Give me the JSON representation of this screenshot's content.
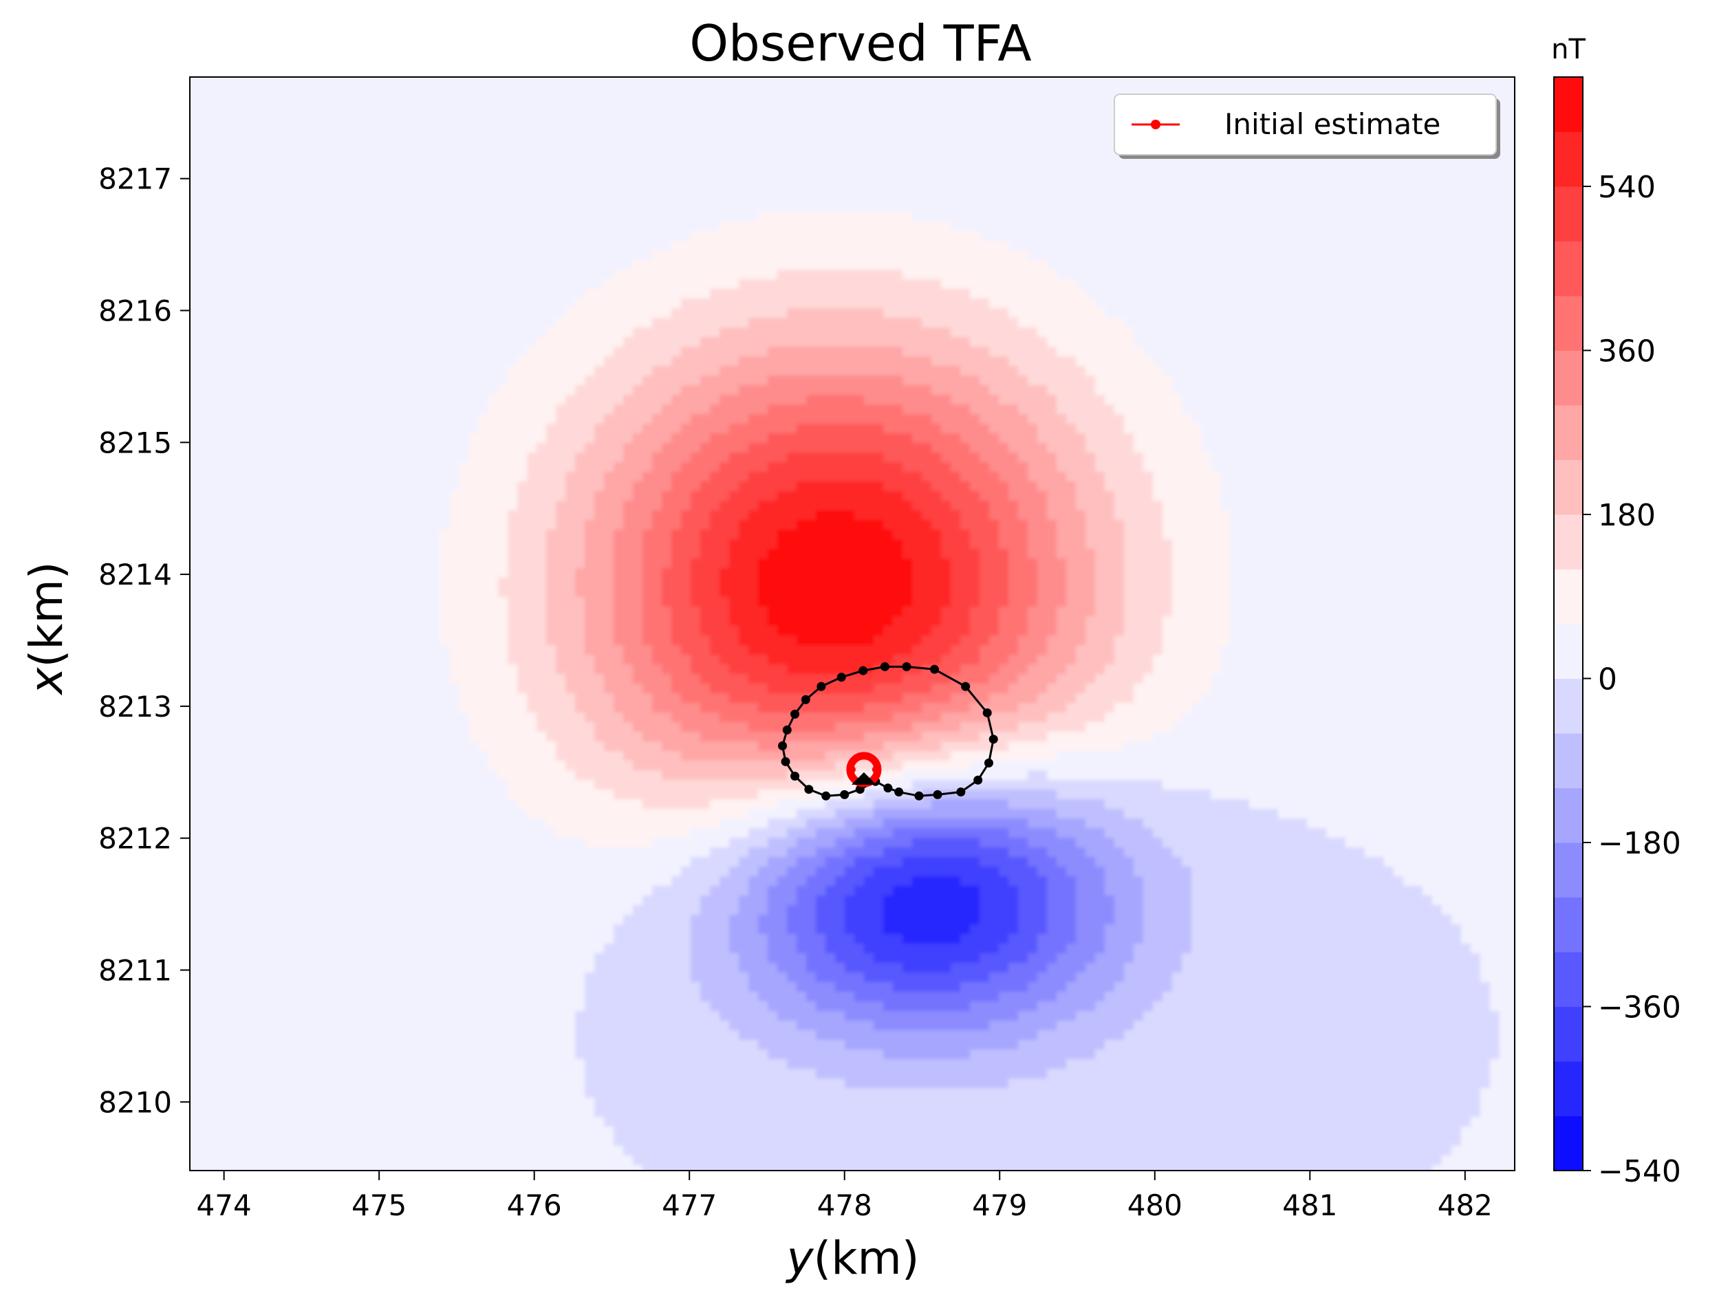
{
  "chart_data": {
    "type": "contour",
    "title": "Observed TFA",
    "xlabel_var": "y",
    "xlabel_unit": "(km)",
    "ylabel_var": "x",
    "ylabel_unit": "(km)",
    "xlim": [
      473.78,
      482.32
    ],
    "ylim": [
      8209.48,
      8217.77
    ],
    "xticks": [
      474,
      475,
      476,
      477,
      478,
      479,
      480,
      481,
      482
    ],
    "yticks": [
      8210,
      8211,
      8212,
      8213,
      8214,
      8215,
      8216,
      8217
    ],
    "grid": false,
    "colorbar": {
      "label": "nT",
      "range": [
        -540,
        660
      ],
      "ticks": [
        540,
        360,
        180,
        0,
        -180,
        -360,
        -540
      ],
      "tick_labels": [
        "540",
        "360",
        "180",
        "0",
        "−180",
        "−360",
        "−540"
      ],
      "levels": 20,
      "colormap": "bwr"
    },
    "field": {
      "positive_peak": {
        "y": 477.95,
        "x": 8213.9,
        "value": 660
      },
      "negative_peak": {
        "y": 478.5,
        "x": 8211.6,
        "value": -540
      }
    },
    "series": [
      {
        "name": "Initial estimate",
        "color": "#ff0000",
        "style": "line-with-dots",
        "points": [
          {
            "y": 478.05,
            "x": 8212.52
          },
          {
            "y": 478.2,
            "x": 8212.52
          }
        ]
      },
      {
        "color": "#000000",
        "style": "closed-line-with-dots",
        "points": [
          {
            "y": 478.4,
            "x": 8213.3
          },
          {
            "y": 478.58,
            "x": 8213.28
          },
          {
            "y": 478.78,
            "x": 8213.15
          },
          {
            "y": 478.92,
            "x": 8212.95
          },
          {
            "y": 478.96,
            "x": 8212.75
          },
          {
            "y": 478.93,
            "x": 8212.57
          },
          {
            "y": 478.86,
            "x": 8212.44
          },
          {
            "y": 478.75,
            "x": 8212.35
          },
          {
            "y": 478.6,
            "x": 8212.33
          },
          {
            "y": 478.48,
            "x": 8212.32
          },
          {
            "y": 478.35,
            "x": 8212.35
          },
          {
            "y": 478.28,
            "x": 8212.38
          },
          {
            "y": 478.2,
            "x": 8212.43
          },
          {
            "y": 478.1,
            "x": 8212.37
          },
          {
            "y": 478.0,
            "x": 8212.33
          },
          {
            "y": 477.88,
            "x": 8212.32
          },
          {
            "y": 477.77,
            "x": 8212.37
          },
          {
            "y": 477.68,
            "x": 8212.47
          },
          {
            "y": 477.62,
            "x": 8212.58
          },
          {
            "y": 477.6,
            "x": 8212.7
          },
          {
            "y": 477.63,
            "x": 8212.82
          },
          {
            "y": 477.68,
            "x": 8212.94
          },
          {
            "y": 477.75,
            "x": 8213.05
          },
          {
            "y": 477.85,
            "x": 8213.15
          },
          {
            "y": 477.98,
            "x": 8213.22
          },
          {
            "y": 478.12,
            "x": 8213.27
          },
          {
            "y": 478.26,
            "x": 8213.3
          }
        ]
      }
    ],
    "legend": {
      "placement": "upper-right",
      "entries": [
        "Initial estimate"
      ]
    }
  }
}
